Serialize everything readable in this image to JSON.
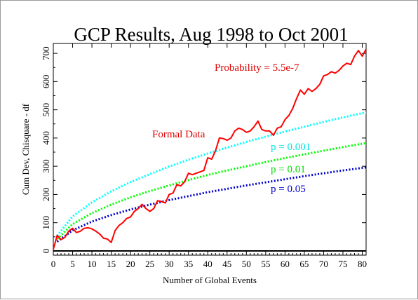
{
  "chart_data": {
    "type": "line",
    "title": "GCP Results, Aug 1998 to Oct 2001",
    "xlabel": "Number of Global Events",
    "ylabel": "Cum Dev, Chisquare - df",
    "xlim": [
      0,
      81
    ],
    "ylim": [
      -15,
      735
    ],
    "xticks": [
      0,
      5,
      10,
      15,
      20,
      25,
      30,
      35,
      40,
      45,
      50,
      55,
      60,
      65,
      70,
      75,
      80
    ],
    "yticks": [
      0,
      100,
      200,
      300,
      400,
      500,
      600,
      700
    ],
    "grid": false,
    "annotations": {
      "probability": "Probability = 5.5e-7",
      "formal_data": "Formal Data",
      "p001": "p = 0.001",
      "p01": "p = 0.01",
      "p05": "p = 0.05"
    },
    "colors": {
      "data": "#ff0000",
      "p001": "#00ffff",
      "p01": "#00ff00",
      "p05": "#0000cc",
      "zero_line": "#000000"
    },
    "series": [
      {
        "label": "Formal Data",
        "style": "solid",
        "x": [
          0,
          1,
          2,
          3,
          4,
          5,
          6,
          7,
          8,
          9,
          10,
          11,
          12,
          13,
          14,
          15,
          16,
          17,
          18,
          19,
          20,
          21,
          22,
          23,
          24,
          25,
          26,
          27,
          28,
          29,
          30,
          31,
          32,
          33,
          34,
          35,
          36,
          37,
          38,
          39,
          40,
          41,
          42,
          43,
          44,
          45,
          46,
          47,
          48,
          49,
          50,
          51,
          52,
          53,
          54,
          55,
          56,
          57,
          58,
          59,
          60,
          61,
          62,
          63,
          64,
          65,
          66,
          67,
          68,
          69,
          70,
          71,
          72,
          73,
          74,
          75,
          76,
          77,
          78,
          79,
          80,
          81
        ],
        "values": [
          5,
          55,
          40,
          48,
          70,
          80,
          65,
          70,
          80,
          82,
          78,
          70,
          60,
          45,
          42,
          30,
          72,
          90,
          100,
          115,
          120,
          140,
          150,
          165,
          150,
          140,
          150,
          178,
          175,
          170,
          200,
          205,
          235,
          230,
          245,
          275,
          270,
          275,
          280,
          285,
          330,
          325,
          355,
          400,
          398,
          392,
          400,
          425,
          435,
          430,
          420,
          425,
          440,
          460,
          430,
          425,
          425,
          410,
          435,
          440,
          465,
          480,
          505,
          540,
          570,
          555,
          575,
          565,
          575,
          590,
          620,
          625,
          635,
          630,
          640,
          655,
          665,
          660,
          690,
          710,
          690,
          715
        ]
      },
      {
        "label": "p = 0.001",
        "style": "dotted",
        "x": [
          1,
          5,
          10,
          15,
          20,
          25,
          30,
          35,
          40,
          45,
          50,
          55,
          60,
          65,
          70,
          75,
          81
        ],
        "values": [
          54,
          122,
          172,
          211,
          244,
          272,
          299,
          323,
          345,
          366,
          386,
          405,
          423,
          440,
          457,
          473,
          491
        ]
      },
      {
        "label": "p = 0.01",
        "style": "dotted",
        "x": [
          1,
          5,
          10,
          15,
          20,
          25,
          30,
          35,
          40,
          45,
          50,
          55,
          60,
          65,
          70,
          75,
          81
        ],
        "values": [
          42,
          95,
          134,
          164,
          190,
          212,
          232,
          251,
          269,
          285,
          300,
          315,
          329,
          342,
          355,
          368,
          382
        ]
      },
      {
        "label": "p = 0.05",
        "style": "dotted",
        "x": [
          1,
          5,
          10,
          15,
          20,
          25,
          30,
          35,
          40,
          45,
          50,
          55,
          60,
          65,
          70,
          75,
          81
        ],
        "values": [
          33,
          73,
          104,
          127,
          147,
          164,
          180,
          194,
          208,
          220,
          232,
          243,
          254,
          265,
          275,
          285,
          296
        ]
      }
    ]
  }
}
